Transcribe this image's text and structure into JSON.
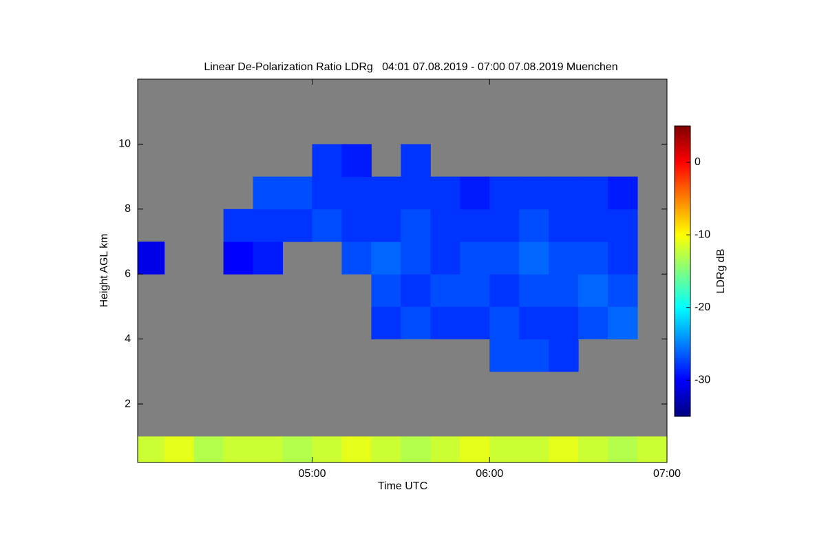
{
  "chart_data": {
    "type": "heatmap",
    "title": "Linear De-Polarization Ratio LDRg   04:01 07.08.2019 - 07:00 07.08.2019 Muenchen",
    "x_label": "Time UTC",
    "y_label": "Height AGL km",
    "colorbar_label": "LDRg dB",
    "colormap": "jet",
    "background": "#808080",
    "x_edges": [
      4.0167,
      4.1667,
      4.3333,
      4.5,
      4.6667,
      4.8333,
      5,
      5.1667,
      5.3333,
      5.5,
      5.6667,
      5.8333,
      6,
      6.1667,
      6.3333,
      6.5,
      6.6667,
      6.8333,
      7
    ],
    "y_edges": [
      0.2,
      1,
      2,
      3,
      4,
      5,
      6,
      7,
      8,
      9,
      10,
      11,
      12
    ],
    "z": [
      [
        -12,
        -11,
        -13,
        -12,
        -12,
        -13,
        -12,
        -11,
        -12,
        -13,
        -12,
        -11,
        -12,
        -12,
        -11,
        -12,
        -13,
        -12
      ],
      [
        null,
        null,
        null,
        null,
        null,
        null,
        null,
        null,
        null,
        null,
        null,
        null,
        null,
        null,
        null,
        null,
        null,
        null
      ],
      [
        null,
        null,
        null,
        null,
        null,
        null,
        null,
        null,
        null,
        null,
        null,
        null,
        null,
        null,
        null,
        null,
        null,
        null
      ],
      [
        null,
        null,
        null,
        null,
        null,
        null,
        null,
        null,
        null,
        null,
        null,
        null,
        -27,
        -27,
        -28,
        null,
        null,
        null
      ],
      [
        null,
        null,
        null,
        null,
        null,
        null,
        null,
        null,
        -28,
        -27,
        -28,
        -28,
        -27,
        -28,
        -28,
        -27,
        -26,
        null
      ],
      [
        null,
        null,
        null,
        null,
        null,
        null,
        null,
        null,
        -27,
        -28,
        -27,
        -27,
        -28,
        -27,
        -27,
        -26,
        -27,
        null
      ],
      [
        -31,
        null,
        null,
        -30,
        -29,
        null,
        null,
        -27,
        -26,
        -27,
        -28,
        -27,
        -27,
        -26,
        -27,
        -27,
        -28,
        null
      ],
      [
        null,
        null,
        null,
        -28,
        -28,
        -28,
        -27,
        -28,
        -28,
        -27,
        -28,
        -28,
        -28,
        -27,
        -28,
        -28,
        -28,
        null
      ],
      [
        null,
        null,
        null,
        null,
        -27,
        -27,
        -28,
        -28,
        -28,
        -28,
        -28,
        -29,
        -28,
        -28,
        -28,
        -28,
        -29,
        null
      ],
      [
        null,
        null,
        null,
        null,
        null,
        null,
        -28,
        -29,
        null,
        -28,
        null,
        null,
        null,
        null,
        null,
        null,
        null,
        null
      ],
      [
        null,
        null,
        null,
        null,
        null,
        null,
        null,
        null,
        null,
        null,
        null,
        null,
        null,
        null,
        null,
        null,
        null,
        null
      ],
      [
        null,
        null,
        null,
        null,
        null,
        null,
        null,
        null,
        null,
        null,
        null,
        null,
        null,
        null,
        null,
        null,
        null,
        null
      ]
    ],
    "xlim": [
      4.0167,
      7
    ],
    "ylim": [
      0.2,
      12
    ],
    "xticks": [
      {
        "value": 5,
        "label": "05:00"
      },
      {
        "value": 6,
        "label": "06:00"
      },
      {
        "value": 7,
        "label": "07:00"
      }
    ],
    "yticks": [
      2,
      4,
      6,
      8,
      10
    ],
    "clim": [
      -35,
      5
    ],
    "cticks": [
      0,
      -10,
      -20,
      -30
    ]
  }
}
